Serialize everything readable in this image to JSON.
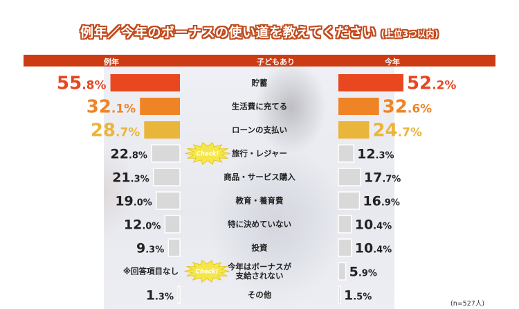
{
  "title": "例年／今年のボーナスの使い道を教えてください",
  "subtitle": "(上位3つ以内)",
  "header": {
    "left": "例年",
    "center": "子どもあり",
    "right": "今年"
  },
  "sample_note": "(n=527人)",
  "check_label": "Check!",
  "colors": {
    "header": "#cc3c12",
    "rank1": "#e8471f",
    "rank2": "#ef8427",
    "rank3": "#e9b53a",
    "other_fill": "#d9d9d9",
    "other_stroke": "#ffffff",
    "rank1_text": "#e8471f",
    "rank2_text": "#ef8427",
    "rank3_text": "#e9b53a",
    "other_text": "#222222",
    "burst": "#f6e64a"
  },
  "chart_data": {
    "type": "bar",
    "layout": "butterfly",
    "categories": [
      "貯蓄",
      "生活費に充てる",
      "ローンの支払い",
      "旅行・レジャー",
      "商品・サービス購入",
      "教育・養育費",
      "特に決めていない",
      "投資",
      "今年はボーナスが支給されない",
      "その他"
    ],
    "category_lines": [
      [
        "貯蓄"
      ],
      [
        "生活費に充てる"
      ],
      [
        "ローンの支払い"
      ],
      [
        "旅行・レジャー"
      ],
      [
        "商品・サービス購入"
      ],
      [
        "教育・養育費"
      ],
      [
        "特に決めていない"
      ],
      [
        "投資"
      ],
      [
        "今年はボーナスが",
        "支給されない"
      ],
      [
        "その他"
      ]
    ],
    "series": [
      {
        "name": "例年",
        "values": [
          55.8,
          32.1,
          28.7,
          22.8,
          21.3,
          19.0,
          12.0,
          9.3,
          null,
          1.3
        ],
        "labels": [
          [
            "55",
            ".8%"
          ],
          [
            "32",
            ".1%"
          ],
          [
            "28",
            ".7%"
          ],
          [
            "22",
            ".8%"
          ],
          [
            "21",
            ".3%"
          ],
          [
            "19",
            ".0%"
          ],
          [
            "12",
            ".0%"
          ],
          [
            "9",
            ".3%"
          ],
          null,
          [
            "1",
            ".3%"
          ]
        ],
        "na_label": "※回答項目なし"
      },
      {
        "name": "今年",
        "values": [
          52.2,
          32.6,
          24.7,
          12.3,
          17.7,
          16.9,
          10.4,
          10.4,
          5.9,
          1.5
        ],
        "labels": [
          [
            "52",
            ".2%"
          ],
          [
            "32",
            ".6%"
          ],
          [
            "24",
            ".7%"
          ],
          [
            "12",
            ".3%"
          ],
          [
            "17",
            ".7%"
          ],
          [
            "16",
            ".9%"
          ],
          [
            "10",
            ".4%"
          ],
          [
            "10",
            ".4%"
          ],
          [
            "5",
            ".9%"
          ],
          [
            "1",
            ".5%"
          ]
        ]
      }
    ],
    "check_marks": [
      "旅行・レジャー",
      "今年はボーナスが支給されない"
    ],
    "unit": "%"
  }
}
